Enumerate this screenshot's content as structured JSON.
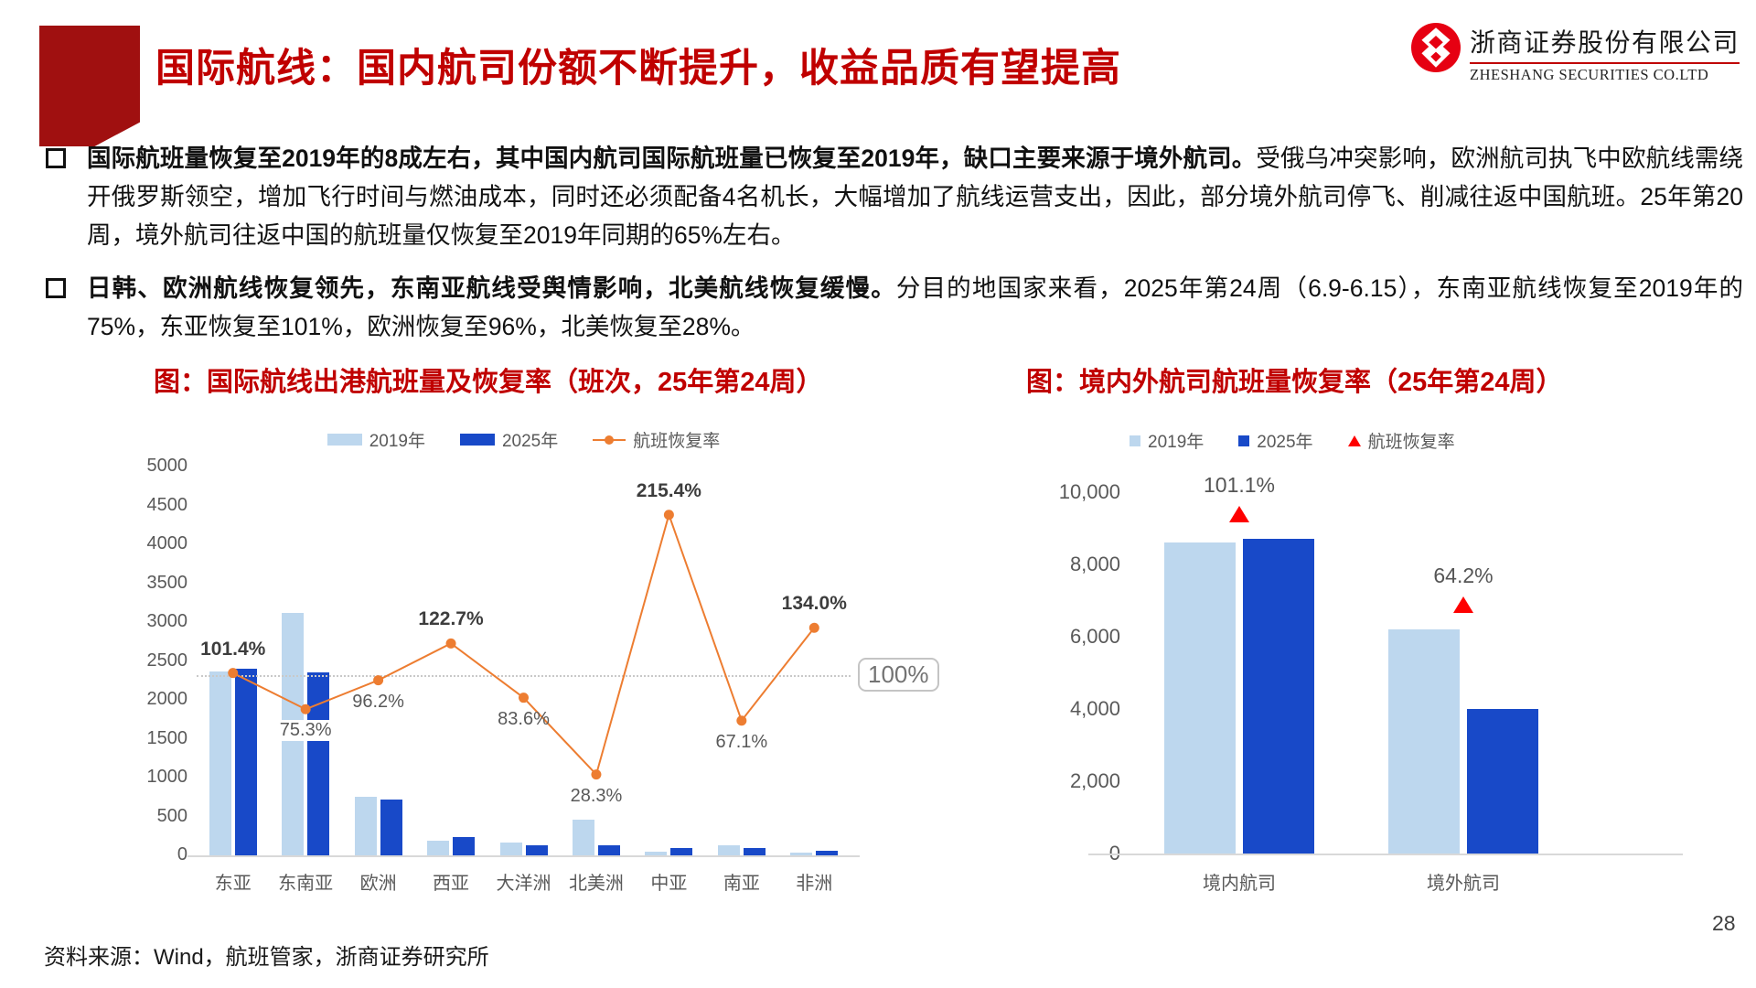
{
  "header": {
    "title": "国际航线：国内航司份额不断提升，收益品质有望提高",
    "logo": {
      "company_cn": "浙商证券股份有限公司",
      "company_en": "ZHESHANG SECURITIES CO.LTD"
    }
  },
  "bullets": [
    {
      "bold": "国际航班量恢复至2019年的8成左右，其中国内航司国际航班量已恢复至2019年，缺口主要来源于境外航司。",
      "rest": "受俄乌冲突影响，欧洲航司执飞中欧航线需绕开俄罗斯领空，增加飞行时间与燃油成本，同时还必须配备4名机长，大幅增加了航线运营支出，因此，部分境外航司停飞、削减往返中国航班。25年第20周，境外航司往返中国的航班量仅恢复至2019年同期的65%左右。"
    },
    {
      "bold": "日韩、欧洲航线恢复领先，东南亚航线受舆情影响，北美航线恢复缓慢。",
      "rest": "分目的地国家来看，2025年第24周（6.9-6.15），东南亚航线恢复至2019年的75%，东亚恢复至101%，欧洲恢复至96%，北美恢复至28%。"
    }
  ],
  "colors": {
    "title_red": "#C00000",
    "block_red": "#A01010",
    "bar_2019": "#BDD7EE",
    "bar_2025": "#1849C8",
    "recovery_line": "#ED7D31",
    "recovery_triangle": "#FE0000",
    "axis_gray": "#D9D9D9",
    "label_gray": "#595959"
  },
  "chart_data": [
    {
      "type": "bar+line",
      "title": "图：国际航线出港航班量及恢复率（班次，25年第24周）",
      "categories": [
        "东亚",
        "东南亚",
        "欧洲",
        "西亚",
        "大洋洲",
        "北美洲",
        "中亚",
        "南亚",
        "非洲"
      ],
      "series": [
        {
          "name": "2019年",
          "color": "#BDD7EE",
          "values": [
            2360,
            3120,
            750,
            190,
            160,
            460,
            45,
            135,
            40
          ]
        },
        {
          "name": "2025年",
          "color": "#1849C8",
          "values": [
            2400,
            2350,
            720,
            235,
            135,
            130,
            100,
            90,
            55
          ]
        }
      ],
      "line_series": {
        "name": "航班恢复率",
        "color": "#ED7D31",
        "values_pct": [
          101.4,
          75.3,
          96.2,
          122.7,
          83.6,
          28.3,
          215.4,
          67.1,
          134.0
        ],
        "labels": [
          "101.4%",
          "75.3%",
          "96.2%",
          "122.7%",
          "83.6%",
          "28.3%",
          "215.4%",
          "67.1%",
          "134.0%"
        ],
        "label_positions": [
          "above",
          "below",
          "below",
          "above",
          "below",
          "below",
          "above",
          "below",
          "above"
        ],
        "label_bold": [
          true,
          false,
          false,
          true,
          false,
          false,
          true,
          false,
          true
        ],
        "label_boxed": [
          false,
          true,
          false,
          false,
          false,
          false,
          false,
          false,
          false
        ]
      },
      "y_axis": {
        "tick_values": [
          0,
          500,
          1000,
          1500,
          2000,
          2500,
          3000,
          3500,
          4000,
          4500,
          5000
        ],
        "max": 5000
      },
      "reference_line": {
        "value_pct": 100,
        "label": "100%"
      },
      "legend": [
        "2019年",
        "2025年",
        "航班恢复率"
      ],
      "grid": "off",
      "legend_position": "top-center"
    },
    {
      "type": "bar",
      "title": "图：境内外航司航班量恢复率（25年第24周）",
      "categories": [
        "境内航司",
        "境外航司"
      ],
      "series": [
        {
          "name": "2019年",
          "color": "#BDD7EE",
          "values": [
            8600,
            6200
          ]
        },
        {
          "name": "2025年",
          "color": "#1849C8",
          "values": [
            8700,
            4000
          ]
        }
      ],
      "recovery_labels": [
        "101.1%",
        "64.2%"
      ],
      "y_axis": {
        "tick_values": [
          0,
          2000,
          4000,
          6000,
          8000,
          10000
        ],
        "tick_labels": [
          "0",
          "2,000",
          "4,000",
          "6,000",
          "8,000",
          "10,000"
        ],
        "max": 10000
      },
      "legend": [
        "2019年",
        "2025年",
        "航班恢复率"
      ],
      "grid": "off",
      "legend_position": "top"
    }
  ],
  "footer": {
    "source": "资料来源：Wind，航班管家，浙商证券研究所",
    "page_number": "28"
  }
}
